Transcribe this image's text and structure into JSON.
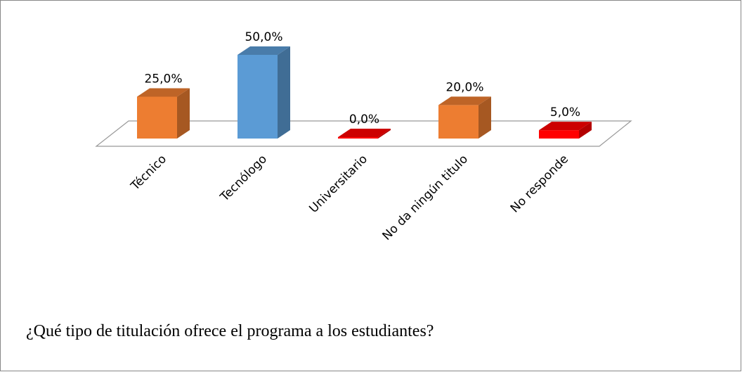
{
  "chart_data": {
    "type": "bar3d",
    "title": "¿Qué tipo de titulación ofrece el programa a los estudiantes?",
    "categories": [
      "Técnico",
      "Tecnólogo",
      "Universitario",
      "No da ningún titulo",
      "No responde"
    ],
    "values": [
      25,
      50,
      0,
      20,
      5
    ],
    "value_labels": [
      "25,0%",
      "50,0%",
      "0,0%",
      "20,0%",
      "5,0%"
    ],
    "colors": [
      "#ED7D31",
      "#5B9BD5",
      "#FF0000",
      "#ED7D31",
      "#FF0000"
    ]
  }
}
